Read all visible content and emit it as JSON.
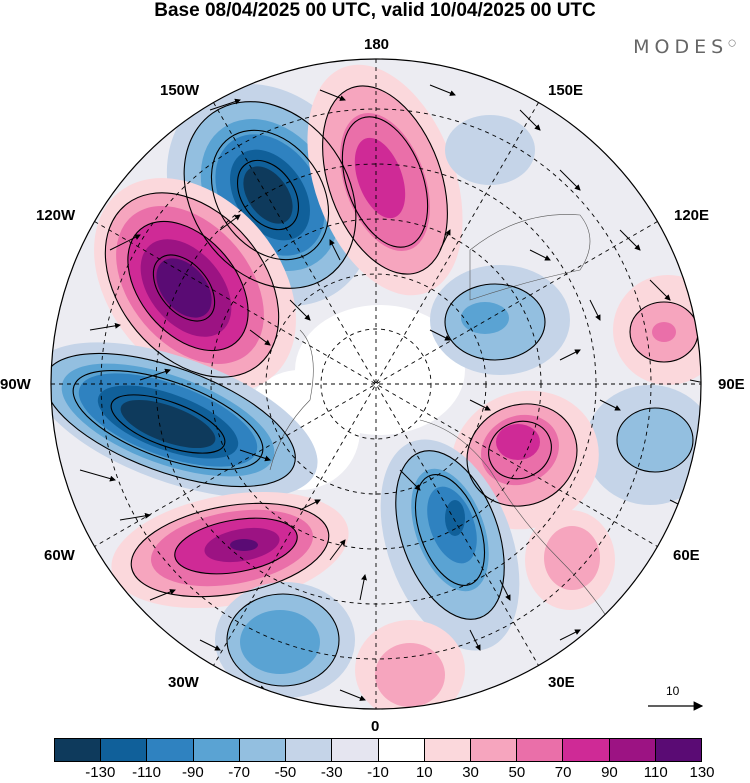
{
  "header": {
    "title": "Base 08/04/2025 00 UTC, valid 10/04/2025 00 UTC",
    "logo": "MODES"
  },
  "map": {
    "projection": "north polar stereographic",
    "longitude_labels": {
      "n180": "180",
      "e150": "150E",
      "e120": "120E",
      "e90": "90E",
      "e60": "60E",
      "e30": "30E",
      "zero": "0",
      "w30": "30W",
      "w60": "60W",
      "w90": "90W",
      "w120": "120W",
      "w150": "150W"
    },
    "vector_reference": "10"
  },
  "colorbar": {
    "colors": [
      "#0e3a5c",
      "#10609a",
      "#2f82c0",
      "#5aa3d3",
      "#93bfe0",
      "#c5d4e8",
      "#e5e5f0",
      "#ffffff",
      "#fbd8dc",
      "#f6a5be",
      "#ea6fa9",
      "#cf2a96",
      "#9c1383",
      "#5a0b74"
    ],
    "labels": [
      "-130",
      "-110",
      "-90",
      "-70",
      "-50",
      "-30",
      "-10",
      "10",
      "30",
      "50",
      "70",
      "90",
      "110",
      "130"
    ]
  }
}
